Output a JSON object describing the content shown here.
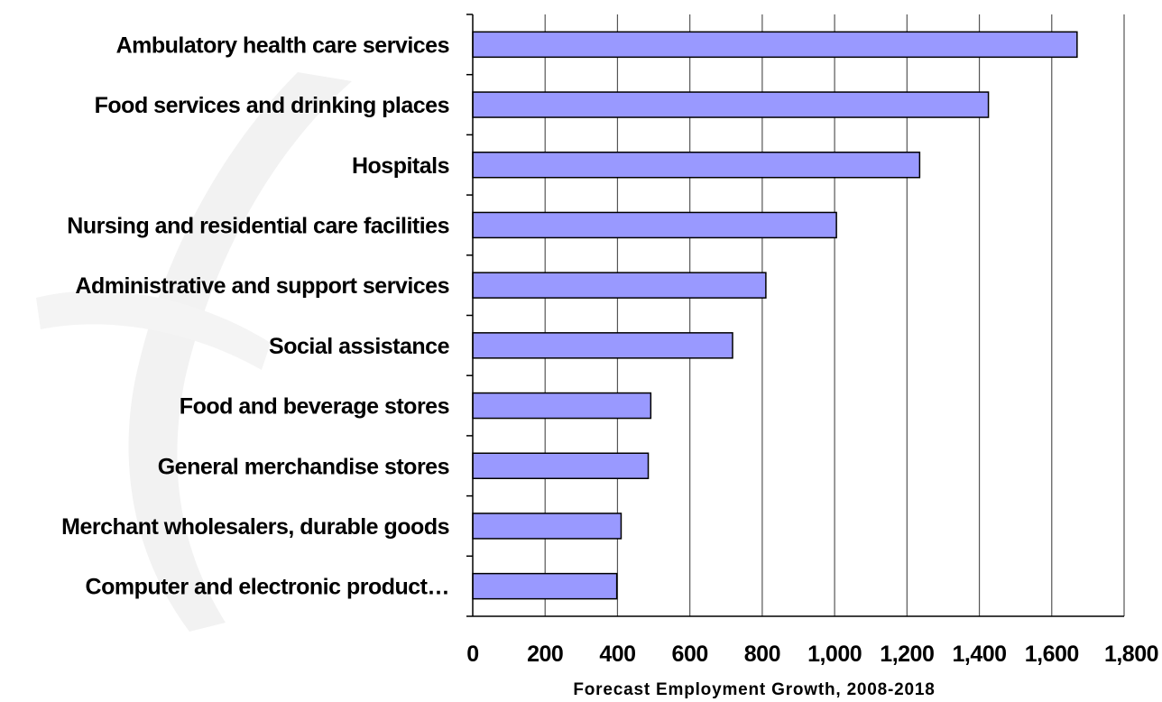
{
  "chart_data": {
    "type": "bar",
    "orientation": "horizontal",
    "title": "",
    "xlabel": "Forecast Employment Growth, 2008-2018",
    "ylabel": "",
    "categories": [
      "Ambulatory health care services",
      "Food services and drinking places",
      "Hospitals",
      "Nursing and residential care facilities",
      "Administrative and support services",
      "Social assistance",
      "Food and beverage stores",
      "General merchandise stores",
      "Merchant wholesalers, durable goods",
      "Computer and electronic product…"
    ],
    "values": [
      1670,
      1425,
      1235,
      1005,
      810,
      718,
      492,
      485,
      410,
      398
    ],
    "xlim": [
      0,
      1800
    ],
    "ticks": [
      0,
      200,
      400,
      600,
      800,
      1000,
      1200,
      1400,
      1600,
      1800
    ],
    "tick_labels": [
      "0",
      "200",
      "400",
      "600",
      "800",
      "1,000",
      "1,200",
      "1,400",
      "1,600",
      "1,800"
    ],
    "grid": true,
    "legend": "none",
    "colors": {
      "bar_fill": "#9999ff",
      "bar_stroke": "#000000",
      "grid": "#555555"
    }
  }
}
